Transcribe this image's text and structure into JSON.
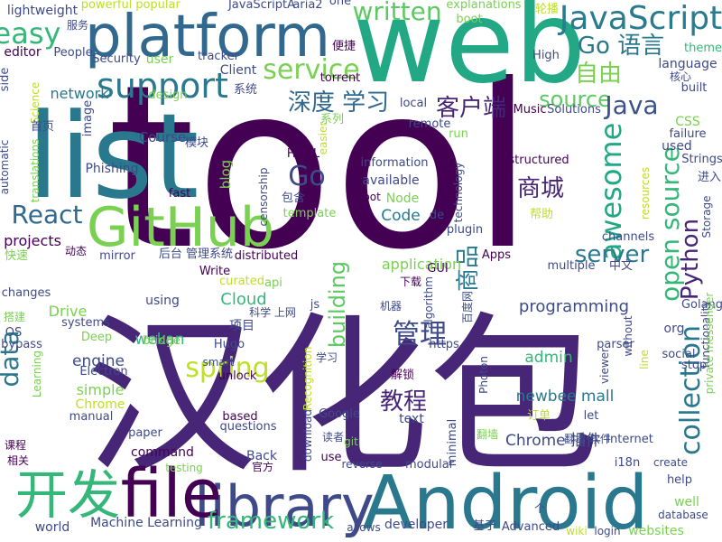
{
  "words": [
    {
      "text": "tool",
      "color": "#440154"
    },
    {
      "text": "汉化包",
      "color": "#482677"
    },
    {
      "text": "list",
      "color": "#2a788e"
    },
    {
      "text": "web",
      "color": "#22a884"
    },
    {
      "text": "Android",
      "color": "#2a788e"
    },
    {
      "text": "platform",
      "color": "#31688e"
    },
    {
      "text": "library",
      "color": "#3e4a89"
    },
    {
      "text": "file",
      "color": "#440154"
    },
    {
      "text": "GitHub",
      "color": "#7ad151"
    },
    {
      "text": "开发",
      "color": "#35b779"
    },
    {
      "text": "JavaScript",
      "color": "#287c8e"
    },
    {
      "text": "service",
      "color": "#7ad151"
    },
    {
      "text": "support",
      "color": "#2a788e"
    },
    {
      "text": "easy",
      "color": "#35b779"
    },
    {
      "text": "written",
      "color": "#5ec962"
    },
    {
      "text": "Go 语言",
      "color": "#2a788e"
    },
    {
      "text": "自由",
      "color": "#7ad151"
    },
    {
      "text": "source",
      "color": "#5ec962"
    },
    {
      "text": "深度 学习",
      "color": "#31688e"
    },
    {
      "text": "客户端",
      "color": "#482677"
    },
    {
      "text": "Java",
      "color": "#3b528b"
    },
    {
      "text": "awesome",
      "color": "#22a884"
    },
    {
      "text": "server",
      "color": "#2a788e"
    },
    {
      "text": "商城",
      "color": "#482677"
    },
    {
      "text": "Go",
      "color": "#3e4a89"
    },
    {
      "text": "open source",
      "color": "#35b779"
    },
    {
      "text": "Python",
      "color": "#482677"
    },
    {
      "text": "React",
      "color": "#31688e"
    },
    {
      "text": "商品",
      "color": "#2a788e"
    },
    {
      "text": "管理",
      "color": "#3e4a89"
    },
    {
      "text": "spring",
      "color": "#bddf26"
    },
    {
      "text": "教程",
      "color": "#482677"
    },
    {
      "text": "data",
      "color": "#2a788e"
    },
    {
      "text": "collection",
      "color": "#2a788e"
    },
    {
      "text": "building",
      "color": "#5ec962"
    },
    {
      "text": "framework",
      "color": "#35b779"
    },
    {
      "text": "programming",
      "color": "#3e4a89"
    },
    {
      "text": "Chrome 插件",
      "color": "#3e4a89"
    },
    {
      "text": "Cloud",
      "color": "#35b779"
    },
    {
      "text": "admin",
      "color": "#35b779"
    },
    {
      "text": "newbee mall",
      "color": "#2a788e"
    },
    {
      "text": "Code",
      "color": "#2a788e"
    },
    {
      "text": "application",
      "color": "#7ad151"
    },
    {
      "text": "blog",
      "color": "#7ad151"
    },
    {
      "text": "Course",
      "color": "#3e4a89"
    },
    {
      "text": "engine",
      "color": "#3e4a89"
    },
    {
      "text": "simple",
      "color": "#7ad151"
    },
    {
      "text": "wekan",
      "color": "#35b779"
    },
    {
      "text": "projects",
      "color": "#440154"
    },
    {
      "text": "Drive",
      "color": "#7ad151"
    },
    {
      "text": "network",
      "color": "#2a788e"
    },
    {
      "text": "lightweight",
      "color": "#3e4a89"
    },
    {
      "text": "powerful",
      "color": "#bddf26"
    },
    {
      "text": "popular",
      "color": "#bddf26"
    },
    {
      "text": "JavaScriptA",
      "color": "#3e4a89"
    },
    {
      "text": "aria2",
      "color": "#3e4a89"
    },
    {
      "text": "one",
      "color": "#3e4a89"
    },
    {
      "text": "explanations",
      "color": "#7ad151"
    },
    {
      "text": "boot",
      "color": "#7ad151"
    },
    {
      "text": "轮播",
      "color": "#bddf26"
    },
    {
      "text": "theme",
      "color": "#35b779"
    },
    {
      "text": "核心",
      "color": "#3e4a89"
    },
    {
      "text": "built",
      "color": "#3e4a89"
    },
    {
      "text": "language",
      "color": "#3e4a89"
    },
    {
      "text": "High",
      "color": "#3e4a89"
    },
    {
      "text": "服务",
      "color": "#3e4a89"
    },
    {
      "text": "editor",
      "color": "#440154"
    },
    {
      "text": "People",
      "color": "#3e4a89"
    },
    {
      "text": "Security",
      "color": "#3e4a89"
    },
    {
      "text": "user",
      "color": "#7ad151"
    },
    {
      "text": "tracker",
      "color": "#3e4a89"
    },
    {
      "text": "Client",
      "color": "#3e4a89"
    },
    {
      "text": "便捷",
      "color": "#440154"
    },
    {
      "text": "torrent",
      "color": "#440154"
    },
    {
      "text": "系统",
      "color": "#3e4a89"
    },
    {
      "text": "design",
      "color": "#7ad151"
    },
    {
      "text": "local",
      "color": "#3e4a89"
    },
    {
      "text": "Music",
      "color": "#440154"
    },
    {
      "text": "Solutions",
      "color": "#3e4a89"
    },
    {
      "text": "image",
      "color": "#3e4a89"
    },
    {
      "text": "Science",
      "color": "#bddf26"
    },
    {
      "text": "side",
      "color": "#3e4a89"
    },
    {
      "text": "首页",
      "color": "#3e4a89"
    },
    {
      "text": "easier",
      "color": "#bddf26"
    },
    {
      "text": "系列",
      "color": "#7ad151"
    },
    {
      "text": "remote",
      "color": "#3e4a89"
    },
    {
      "text": "run",
      "color": "#7ad151"
    },
    {
      "text": "CSS",
      "color": "#7ad151"
    },
    {
      "text": "failure",
      "color": "#3e4a89"
    },
    {
      "text": "used",
      "color": "#3e4a89"
    },
    {
      "text": "Strings",
      "color": "#3e4a89"
    },
    {
      "text": "模块",
      "color": "#3e4a89"
    },
    {
      "text": "HTML",
      "color": "#440154"
    },
    {
      "text": "information",
      "color": "#3e4a89"
    },
    {
      "text": "structured",
      "color": "#440154"
    },
    {
      "text": "automatic",
      "color": "#3e4a89"
    },
    {
      "text": "Phishing",
      "color": "#3e4a89"
    },
    {
      "text": "translations",
      "color": "#7ad151"
    },
    {
      "text": "fast",
      "color": "#440154"
    },
    {
      "text": "censorship",
      "color": "#3e4a89"
    },
    {
      "text": "available",
      "color": "#3e4a89"
    },
    {
      "text": "technology",
      "color": "#3e4a89"
    },
    {
      "text": "bot",
      "color": "#440154"
    },
    {
      "text": "进入",
      "color": "#3e4a89"
    },
    {
      "text": "resources",
      "color": "#bddf26"
    },
    {
      "text": "Storage",
      "color": "#3e4a89"
    },
    {
      "text": "包含",
      "color": "#3e4a89"
    },
    {
      "text": "template",
      "color": "#7ad151"
    },
    {
      "text": "Node",
      "color": "#7ad151"
    },
    {
      "text": "de",
      "color": "#3e4a89"
    },
    {
      "text": "帮助",
      "color": "#bddf26"
    },
    {
      "text": "plugin",
      "color": "#3e4a89"
    },
    {
      "text": "Apps",
      "color": "#440154"
    },
    {
      "text": "channels",
      "color": "#3e4a89"
    },
    {
      "text": "multiple",
      "color": "#3e4a89"
    },
    {
      "text": "中文",
      "color": "#3e4a89"
    },
    {
      "text": "动态",
      "color": "#440154"
    },
    {
      "text": "mirror",
      "color": "#3e4a89"
    },
    {
      "text": "后台 管理系统",
      "color": "#3e4a89"
    },
    {
      "text": "distributed",
      "color": "#440154"
    },
    {
      "text": "GUI",
      "color": "#440154"
    },
    {
      "text": "快速",
      "color": "#7ad151"
    },
    {
      "text": "Write",
      "color": "#440154"
    },
    {
      "text": "curated",
      "color": "#bddf26"
    },
    {
      "text": "api",
      "color": "#7ad151"
    },
    {
      "text": "下载",
      "color": "#440154"
    },
    {
      "text": "changes",
      "color": "#3e4a89"
    },
    {
      "text": "using",
      "color": "#3e4a89"
    },
    {
      "text": "js",
      "color": "#3e4a89"
    },
    {
      "text": "机器",
      "color": "#3e4a89"
    },
    {
      "text": "algorithm",
      "color": "#3e4a89"
    },
    {
      "text": "百度网",
      "color": "#3e4a89"
    },
    {
      "text": "Golang",
      "color": "#3e4a89"
    },
    {
      "text": "搭建",
      "color": "#7ad151"
    },
    {
      "text": "OS",
      "color": "#3e4a89"
    },
    {
      "text": "bypass",
      "color": "#3e4a89"
    },
    {
      "text": "systems",
      "color": "#3e4a89"
    },
    {
      "text": "Deep",
      "color": "#7ad151"
    },
    {
      "text": "科学 上网",
      "color": "#3e4a89"
    },
    {
      "text": "项目",
      "color": "#3e4a89"
    },
    {
      "text": "Hugo",
      "color": "#3e4a89"
    },
    {
      "text": "bridge",
      "color": "#7ad151"
    },
    {
      "text": "https",
      "color": "#3e4a89"
    },
    {
      "text": "parser",
      "color": "#3e4a89"
    },
    {
      "text": "without",
      "color": "#3e4a89"
    },
    {
      "text": "social",
      "color": "#3e4a89"
    },
    {
      "text": "functionality",
      "color": "#3e4a89"
    },
    {
      "text": "org",
      "color": "#3e4a89"
    },
    {
      "text": "Learning",
      "color": "#7ad151"
    },
    {
      "text": "Electron",
      "color": "#3e4a89"
    },
    {
      "text": "smart",
      "color": "#3e4a89"
    },
    {
      "text": "unlock",
      "color": "#440154"
    },
    {
      "text": "学习",
      "color": "#3e4a89"
    },
    {
      "text": "Recognition",
      "color": "#bddf26"
    },
    {
      "text": "解锁",
      "color": "#440154"
    },
    {
      "text": "Photon",
      "color": "#3e4a89"
    },
    {
      "text": "viewer",
      "color": "#3e4a89"
    },
    {
      "text": "line",
      "color": "#bddf26"
    },
    {
      "text": "stop",
      "color": "#3e4a89"
    },
    {
      "text": "private messenger",
      "color": "#7ad151"
    },
    {
      "text": "Chrome",
      "color": "#bddf26"
    },
    {
      "text": "manual",
      "color": "#3e4a89"
    },
    {
      "text": "based",
      "color": "#440154"
    },
    {
      "text": "Google",
      "color": "#3e4a89"
    },
    {
      "text": "download",
      "color": "#3e4a89"
    },
    {
      "text": "读者",
      "color": "#3e4a89"
    },
    {
      "text": "text",
      "color": "#3e4a89"
    },
    {
      "text": "订单",
      "color": "#bddf26"
    },
    {
      "text": "let",
      "color": "#3e4a89"
    },
    {
      "text": "翻墙 软件",
      "color": "#3e4a89"
    },
    {
      "text": "Internet",
      "color": "#3e4a89"
    },
    {
      "text": "课程",
      "color": "#440154"
    },
    {
      "text": "questions",
      "color": "#3e4a89"
    },
    {
      "text": "paper",
      "color": "#3e4a89"
    },
    {
      "text": "git",
      "color": "#7ad151"
    },
    {
      "text": "翻墙",
      "color": "#7ad151"
    },
    {
      "text": "minimal",
      "color": "#3e4a89"
    },
    {
      "text": "相关",
      "color": "#440154"
    },
    {
      "text": "command",
      "color": "#440154"
    },
    {
      "text": "Back",
      "color": "#3e4a89"
    },
    {
      "text": "官方",
      "color": "#440154"
    },
    {
      "text": "use",
      "color": "#440154"
    },
    {
      "text": "reverse",
      "color": "#3e4a89"
    },
    {
      "text": "modular",
      "color": "#3e4a89"
    },
    {
      "text": "i18n",
      "color": "#3e4a89"
    },
    {
      "text": "create",
      "color": "#3e4a89"
    },
    {
      "text": "help",
      "color": "#3e4a89"
    },
    {
      "text": "testing",
      "color": "#7ad151"
    },
    {
      "text": "well",
      "color": "#7ad151"
    },
    {
      "text": "database",
      "color": "#3e4a89"
    },
    {
      "text": "world",
      "color": "#3e4a89"
    },
    {
      "text": "Machine Learning",
      "color": "#3e4a89"
    },
    {
      "text": "allows",
      "color": "#3e4a89"
    },
    {
      "text": "developer",
      "color": "#3e4a89"
    },
    {
      "text": "基于",
      "color": "#3e4a89"
    },
    {
      "text": "Advanced",
      "color": "#3e4a89"
    },
    {
      "text": "wiki",
      "color": "#bddf26"
    },
    {
      "text": "login",
      "color": "#3e4a89"
    },
    {
      "text": "websites",
      "color": "#7ad151"
    },
    {
      "text": "个",
      "color": "#3e4a89"
    }
  ]
}
